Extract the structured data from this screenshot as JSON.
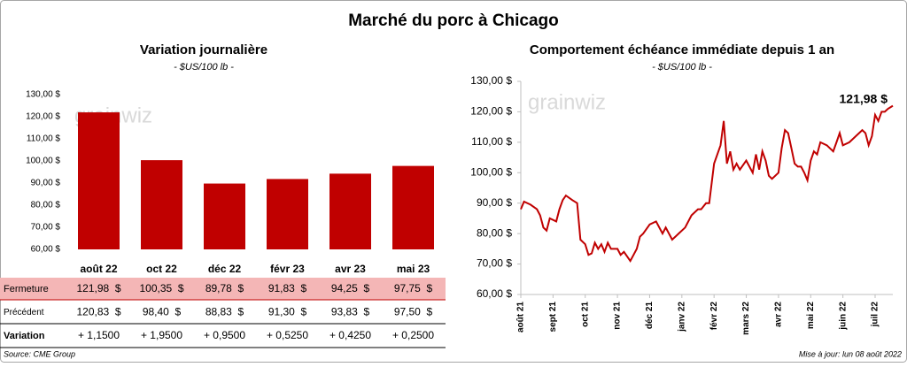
{
  "title": "Marché du porc à Chicago",
  "chart_data": [
    {
      "type": "bar",
      "title": "Variation journalière",
      "subtitle": "- $US/100 lb -",
      "watermark": "grainwiz",
      "categories": [
        "août 22",
        "oct 22",
        "déc 22",
        "févr 23",
        "avr 23",
        "mai 23"
      ],
      "values": [
        121.98,
        100.35,
        89.78,
        91.83,
        94.25,
        97.75
      ],
      "color": "#c00000",
      "ylim": [
        60,
        130
      ],
      "yticks": [
        {
          "value": 60,
          "label": "60,00 $"
        },
        {
          "value": 70,
          "label": "70,00 $"
        },
        {
          "value": 80,
          "label": "80,00 $"
        },
        {
          "value": 90,
          "label": "90,00 $"
        },
        {
          "value": 100,
          "label": "100,00 $"
        },
        {
          "value": 110,
          "label": "110,00 $"
        },
        {
          "value": 120,
          "label": "120,00 $"
        },
        {
          "value": 130,
          "label": "130,00 $"
        }
      ]
    },
    {
      "type": "line",
      "title": "Comportement échéance immédiate depuis 1 an",
      "subtitle": "- $US/100 lb -",
      "watermark": "grainwiz",
      "annotation": "121,98 $",
      "color": "#c00000",
      "x": [
        0,
        0.1,
        0.3,
        0.5,
        0.6,
        0.7,
        0.8,
        0.9,
        1.1,
        1.2,
        1.3,
        1.4,
        1.6,
        1.75,
        1.85,
        2.0,
        2.1,
        2.2,
        2.3,
        2.4,
        2.5,
        2.6,
        2.7,
        2.8,
        3.0,
        3.1,
        3.2,
        3.4,
        3.5,
        3.6,
        3.7,
        3.8,
        4.0,
        4.2,
        4.4,
        4.5,
        4.7,
        4.9,
        5.1,
        5.3,
        5.5,
        5.6,
        5.75,
        5.85,
        6.0,
        6.2,
        6.3,
        6.4,
        6.5,
        6.6,
        6.7,
        6.8,
        7.0,
        7.2,
        7.3,
        7.4,
        7.5,
        7.6,
        7.7,
        7.8,
        8.0,
        8.1,
        8.2,
        8.3,
        8.4,
        8.5,
        8.6,
        8.7,
        8.8,
        8.9,
        9.0,
        9.1,
        9.2,
        9.3,
        9.5,
        9.7,
        9.8,
        9.9,
        10.0,
        10.2,
        10.4,
        10.6,
        10.7,
        10.8,
        10.9,
        11.0,
        11.1,
        11.2,
        11.3,
        11.4,
        11.55
      ],
      "values": [
        88,
        90.5,
        89.5,
        88,
        86,
        82,
        81,
        85,
        84,
        88,
        91,
        92.5,
        91,
        90,
        78,
        76.5,
        73,
        73.5,
        77,
        75,
        76.5,
        74,
        77,
        75,
        75,
        73,
        74,
        71,
        73,
        75,
        79,
        80,
        83,
        84,
        80,
        82,
        78,
        80,
        82,
        86,
        88,
        88,
        90,
        90,
        103,
        109,
        117,
        103,
        107,
        101,
        103,
        101,
        104,
        100,
        106,
        101,
        107,
        104,
        99,
        98,
        100,
        108,
        114,
        113,
        108,
        103,
        102,
        102,
        100,
        97.5,
        104,
        107,
        106,
        110,
        109,
        107,
        110,
        113,
        109,
        110,
        112,
        114,
        113,
        109,
        112,
        119,
        117,
        120,
        120,
        121,
        121.98
      ],
      "xlim": [
        0,
        11.55
      ],
      "xticks": [
        {
          "value": 0,
          "label": "août 21"
        },
        {
          "value": 1,
          "label": "sept 21"
        },
        {
          "value": 2,
          "label": "oct 21"
        },
        {
          "value": 3,
          "label": "nov 21"
        },
        {
          "value": 4,
          "label": "déc 21"
        },
        {
          "value": 5,
          "label": "janv 22"
        },
        {
          "value": 6,
          "label": "févr 22"
        },
        {
          "value": 7,
          "label": "mars 22"
        },
        {
          "value": 8,
          "label": "avr 22"
        },
        {
          "value": 9,
          "label": "mai 22"
        },
        {
          "value": 10,
          "label": "juin 22"
        },
        {
          "value": 11,
          "label": "juil 22"
        }
      ],
      "ylim": [
        60,
        130
      ],
      "yticks": [
        {
          "value": 60,
          "label": "60,00 $"
        },
        {
          "value": 70,
          "label": "70,00 $"
        },
        {
          "value": 80,
          "label": "80,00 $"
        },
        {
          "value": 90,
          "label": "90,00 $"
        },
        {
          "value": 100,
          "label": "100,00 $"
        },
        {
          "value": 110,
          "label": "110,00 $"
        },
        {
          "value": 120,
          "label": "120,00 $"
        },
        {
          "value": 130,
          "label": "130,00 $"
        }
      ]
    }
  ],
  "table": {
    "rows": [
      {
        "label": "Fermeture",
        "cells": [
          "121,98  $",
          "100,35  $",
          "89,78  $",
          "91,83  $",
          "94,25  $",
          "97,75  $"
        ]
      },
      {
        "label": "Précédent",
        "cells": [
          "120,83  $",
          "98,40  $",
          "88,83  $",
          "91,30  $",
          "93,83  $",
          "97,50  $"
        ]
      },
      {
        "label": "Variation",
        "cells": [
          "+ 1,1500",
          "+ 1,9500",
          "+ 0,9500",
          "+ 0,5250",
          "+ 0,4250",
          "+ 0,2500"
        ]
      }
    ]
  },
  "source": "Source: CME Group",
  "updated": "Mise à jour: lun 08 août 2022"
}
